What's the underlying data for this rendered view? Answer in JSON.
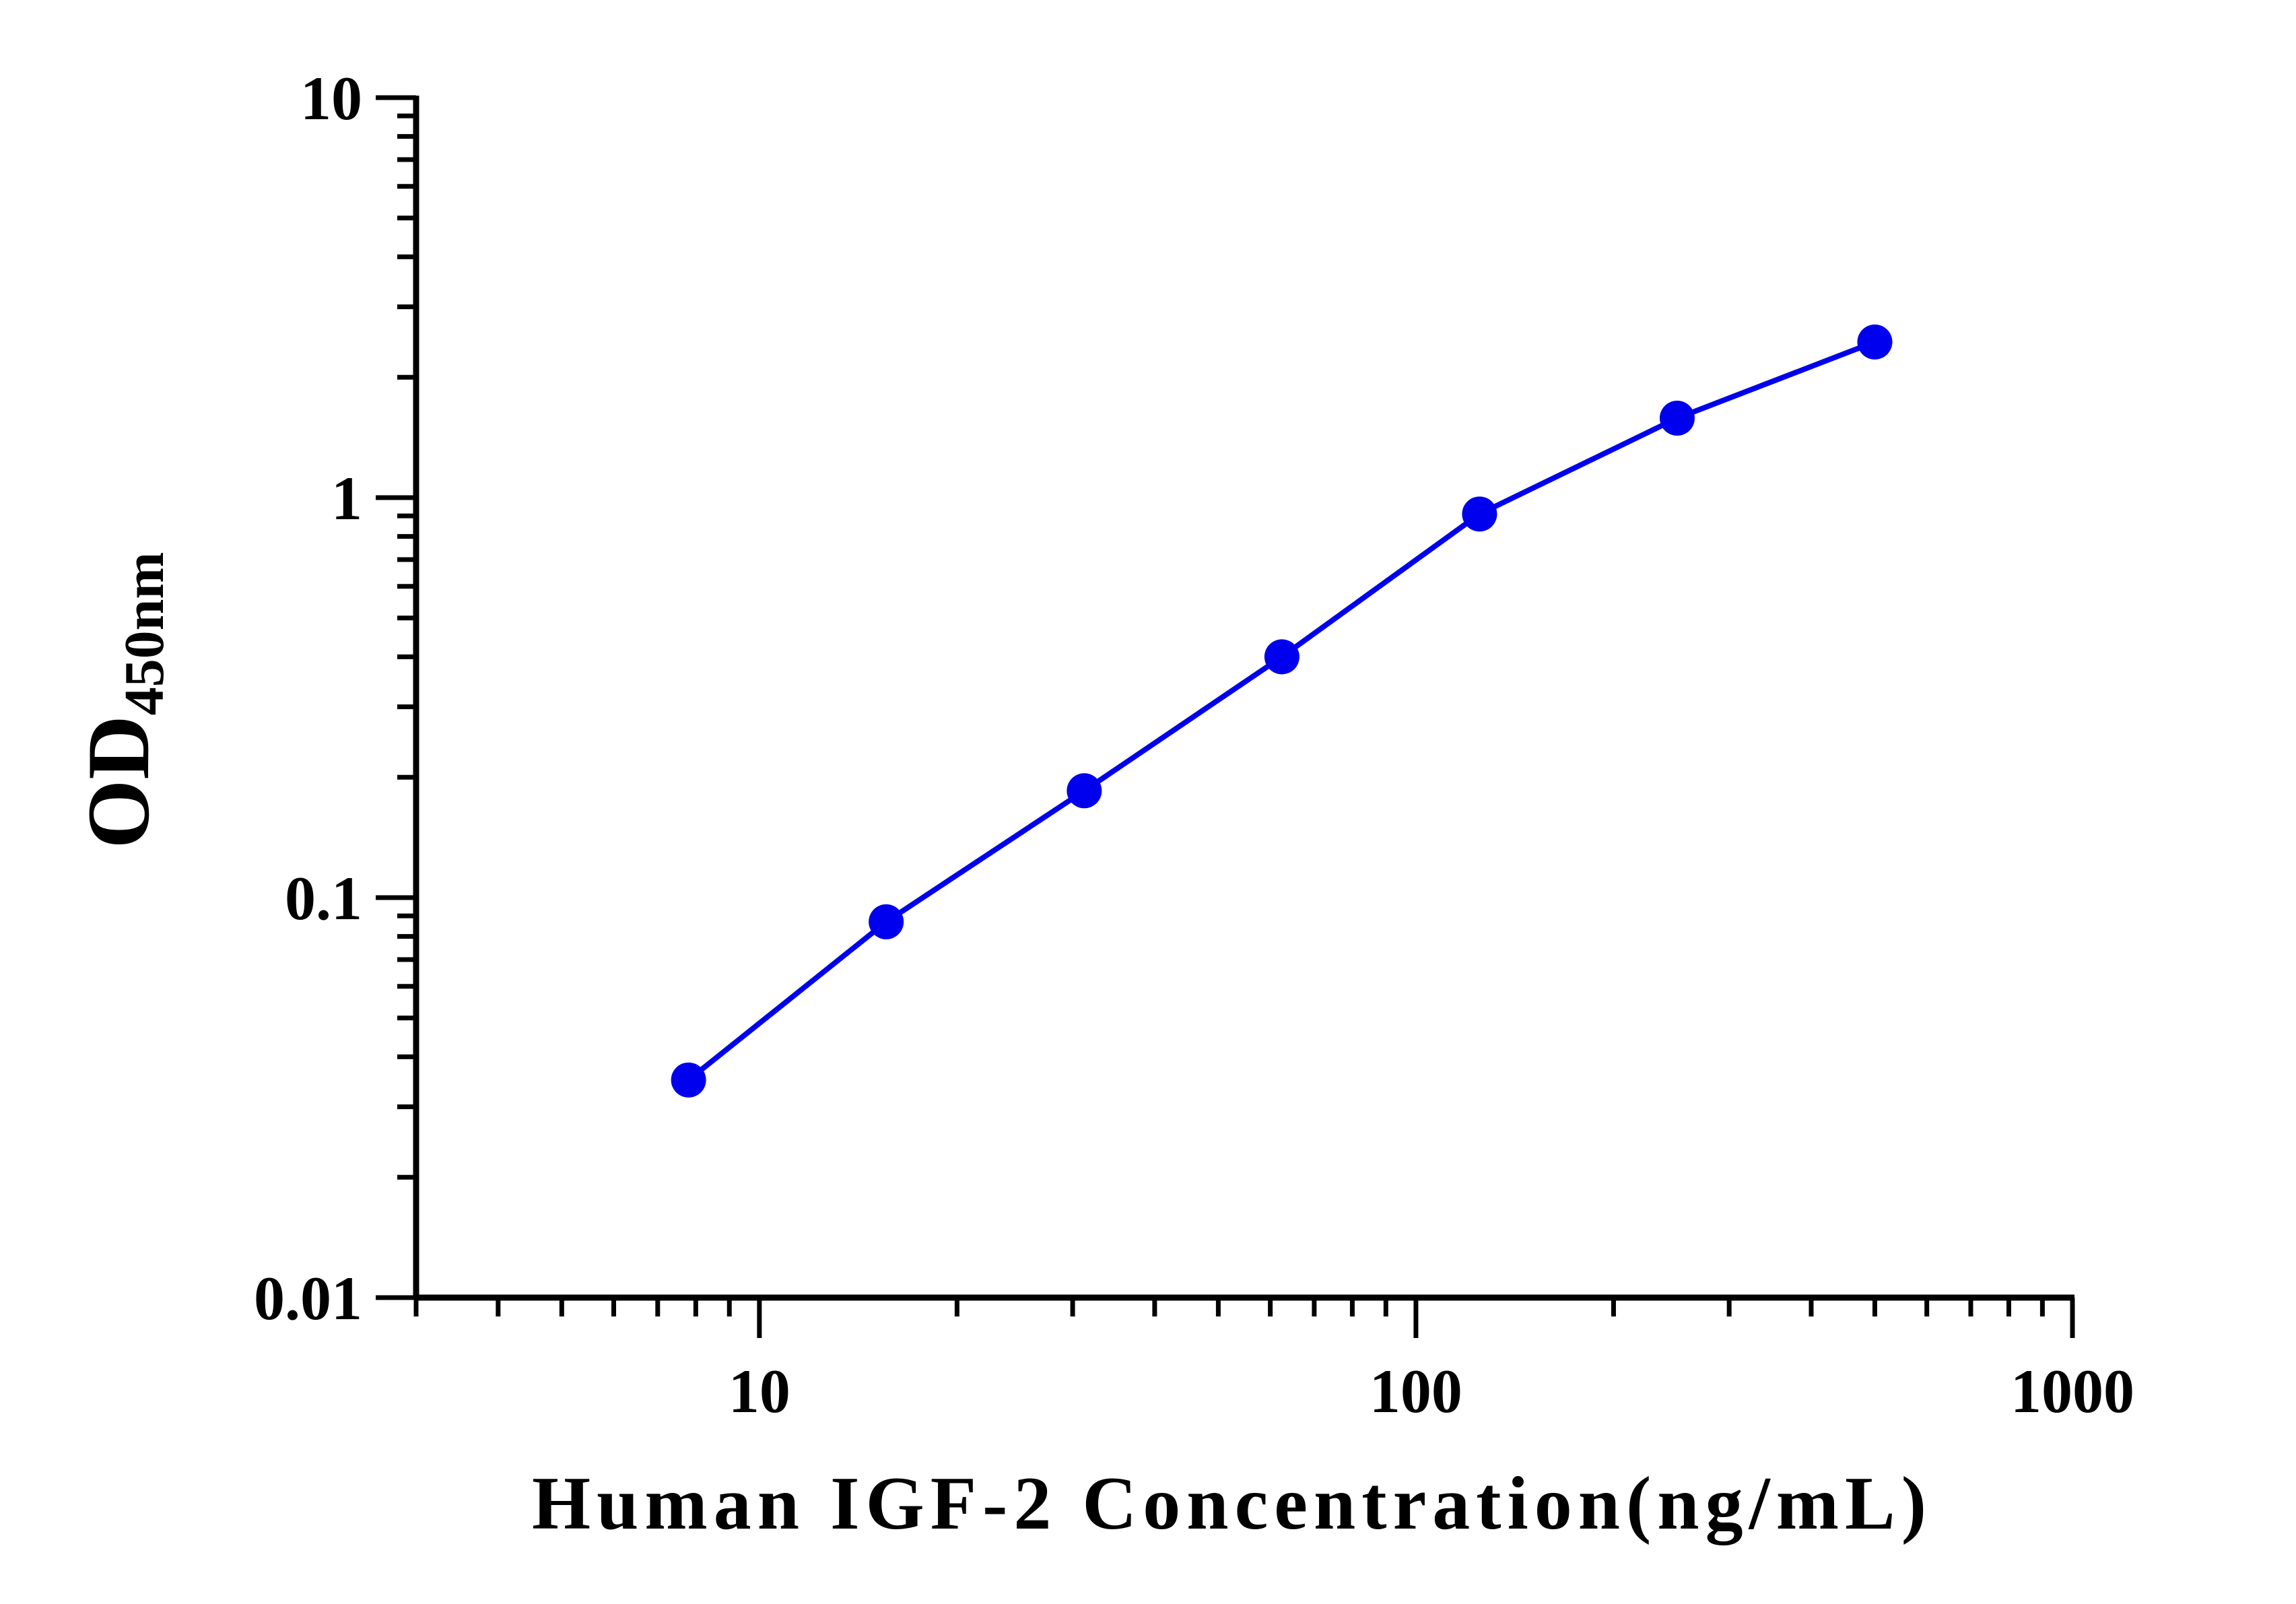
{
  "chart_data": {
    "type": "line",
    "xlabel": "Human IGF-2 Concentration(ng/mL)",
    "ylabel": {
      "main": "OD",
      "subscript": "450nm"
    },
    "x_scale": "log",
    "y_scale": "log",
    "xlim": [
      3,
      1000
    ],
    "ylim": [
      0.01,
      10
    ],
    "x_ticks": [
      {
        "value": 10,
        "label": "10"
      },
      {
        "value": 100,
        "label": "100"
      },
      {
        "value": 1000,
        "label": "1000"
      }
    ],
    "y_ticks": [
      {
        "value": 0.01,
        "label": "0.01"
      },
      {
        "value": 0.1,
        "label": "0.1"
      },
      {
        "value": 1,
        "label": "1"
      },
      {
        "value": 10,
        "label": "10"
      }
    ],
    "grid": false,
    "legend": "none",
    "series": [
      {
        "color": "#0000ee",
        "x": [
          7.8,
          15.6,
          31.25,
          62.5,
          125,
          250,
          500
        ],
        "y": [
          0.035,
          0.087,
          0.185,
          0.4,
          0.91,
          1.58,
          2.45
        ]
      }
    ]
  }
}
